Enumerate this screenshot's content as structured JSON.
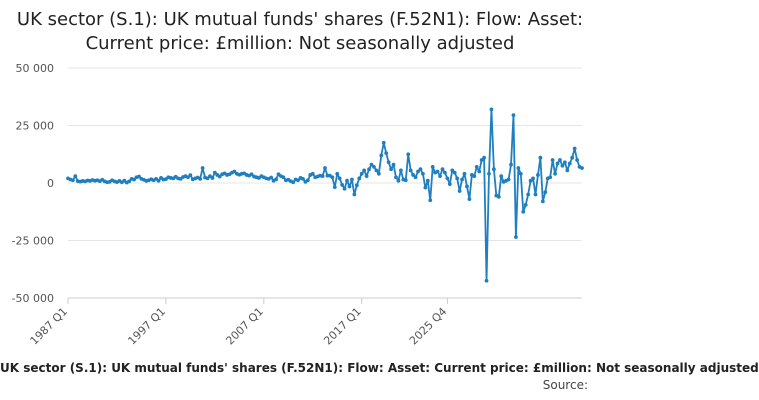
{
  "chart_data": {
    "type": "line",
    "title": "UK sector (S.1): UK mutual funds' shares (F.52N1): Flow: Asset: Current price: £million: Not seasonally adjusted",
    "xlabel": "",
    "ylabel": "",
    "x_tick_labels": [
      "1987 Q1",
      "1997 Q1",
      "2007 Q1",
      "2017 Q1",
      "2025 Q4"
    ],
    "y_tick_labels": [
      "50 000",
      "25 000",
      "0",
      "-25 000",
      "-50 000"
    ],
    "y_ticks": [
      50000,
      25000,
      0,
      -25000,
      -50000
    ],
    "ylim": [
      -50000,
      50000
    ],
    "x_start": "1987 Q1",
    "x_end": "2025 Q4",
    "grid": "horizontal",
    "color": "#1f7fbf",
    "legend": "UK sector (S.1): UK mutual funds' shares (F.52N1): Flow: Asset: Current price: £million: Not seasonally adjusted",
    "source": "Source:",
    "series": [
      {
        "values": [
          2000,
          1500,
          1200,
          3000,
          800,
          600,
          900,
          700,
          1100,
          900,
          1300,
          1000,
          1200,
          800,
          1400,
          700,
          300,
          500,
          1200,
          700,
          400,
          900,
          300,
          1000,
          200,
          700,
          1800,
          1500,
          2500,
          2800,
          1800,
          1400,
          900,
          1200,
          1600,
          1200,
          1800,
          1000,
          2200,
          1500,
          1700,
          2500,
          2200,
          2000,
          2700,
          2000,
          1800,
          2600,
          3000,
          2500,
          3400,
          1600,
          2000,
          2400,
          1800,
          6500,
          2400,
          2000,
          3000,
          2200,
          4500,
          3500,
          2800,
          3800,
          4200,
          3500,
          3800,
          4500,
          5000,
          4000,
          3600,
          4000,
          4200,
          3500,
          3200,
          3800,
          2800,
          2500,
          2200,
          3000,
          2500,
          2000,
          1800,
          2400,
          1000,
          1600,
          3800,
          3000,
          2500,
          1200,
          1400,
          800,
          300,
          1500,
          1200,
          2200,
          1800,
          500,
          1200,
          3500,
          4000,
          2500,
          2800,
          3200,
          3000,
          6500,
          3200,
          3200,
          2500,
          -1800,
          4000,
          2000,
          -800,
          -2500,
          1000,
          -1500,
          1500,
          -5000,
          -1000,
          2000,
          4000,
          5500,
          3000,
          6000,
          8000,
          7000,
          5500,
          4000,
          12000,
          17500,
          13000,
          9000,
          6000,
          8000,
          2500,
          1000,
          5500,
          1500,
          1200,
          12500,
          5500,
          3500,
          2500,
          5000,
          6000,
          4000,
          -2000,
          1000,
          -7500,
          7000,
          4500,
          5000,
          3000,
          6000,
          4500,
          2000,
          -500,
          5500,
          4500,
          2000,
          -3500,
          1500,
          4000,
          -1500,
          -7000,
          3500,
          3000,
          7000,
          5000,
          10000,
          11000,
          -42500,
          4000,
          32000,
          6000,
          -5500,
          -6000,
          3000,
          500,
          1000,
          1500,
          8000,
          29500,
          -23500,
          6500,
          4000,
          -12500,
          -9500,
          -5000,
          1000,
          2000,
          -5000,
          3500,
          11000,
          -8000,
          -4000,
          2000,
          2500,
          10000,
          4000,
          8500,
          10000,
          7500,
          9000,
          5500,
          8500,
          11000,
          15000,
          10000,
          7000,
          6500
        ]
      }
    ]
  }
}
